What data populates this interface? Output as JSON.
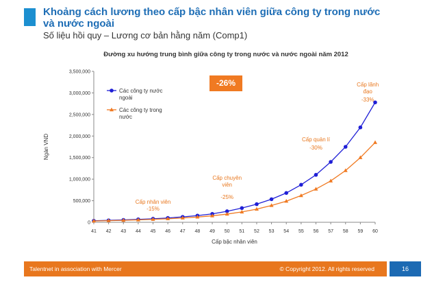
{
  "slide": {
    "title": "Khoảng cách lương theo cấp bậc nhân viên giữa công ty trong nước và nước ngoài",
    "subtitle": "Số liệu hồi quy – Lương cơ bản hằng năm (Comp1)",
    "badge": "-26%",
    "footer_left": "Talentnet in association with Mercer",
    "footer_right": "© Copyright 2012. All rights reserved",
    "page_number": "16"
  },
  "colors": {
    "foreign": "#1f1fd6",
    "domestic": "#f07a22",
    "accent": "#1c8fd0",
    "footer": "#e8771e",
    "page_box": "#1c6ab3"
  },
  "chart_data": {
    "type": "line",
    "title": "Đường xu hướng trung bình giữa công ty trong nước và nước ngoài năm 2012",
    "xlabel": "Cấp bậc nhân viên",
    "ylabel": "Ngàn VND",
    "x": [
      41,
      42,
      43,
      44,
      45,
      46,
      47,
      48,
      49,
      50,
      51,
      52,
      53,
      54,
      55,
      56,
      57,
      58,
      59,
      60
    ],
    "ylim": [
      0,
      3500000
    ],
    "yticks": [
      "0",
      "500,000",
      "1,000,000",
      "1,500,000",
      "2,000,000",
      "2,500,000",
      "3,000,000",
      "3,500,000"
    ],
    "legend_position": "top-left",
    "series": [
      {
        "name": "Các công ty nước ngoài",
        "marker": "circle",
        "values": [
          35000,
          45000,
          55000,
          68000,
          82000,
          100000,
          125000,
          155000,
          195000,
          255000,
          330000,
          420000,
          535000,
          680000,
          870000,
          1100000,
          1400000,
          1750000,
          2200000,
          2780000
        ]
      },
      {
        "name": "Các công ty trong nước",
        "marker": "triangle",
        "values": [
          30000,
          38000,
          46000,
          56000,
          68000,
          82000,
          100000,
          122000,
          150000,
          190000,
          240000,
          305000,
          390000,
          490000,
          620000,
          770000,
          960000,
          1200000,
          1500000,
          1850000
        ]
      }
    ],
    "annotations": [
      {
        "label": "Cấp nhân viên",
        "value": "-15%",
        "x": 45
      },
      {
        "label": "Cấp chuyên viên",
        "value": "-25%",
        "x": 50
      },
      {
        "label": "Cấp quản lí",
        "value": "-30%",
        "x": 56
      },
      {
        "label": "Cấp lãnh đạo",
        "value": "-33%",
        "x": 59.5
      }
    ]
  }
}
